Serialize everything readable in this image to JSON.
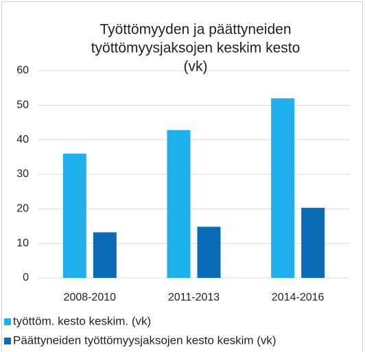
{
  "chart_data": {
    "type": "bar",
    "title": [
      "Työttömyyden ja päättyneiden",
      "työttömyysjaksojen keskim kesto",
      "(vk)"
    ],
    "categories": [
      "2008-2010",
      "2011-2013",
      "2014-2016"
    ],
    "series": [
      {
        "name": "työttöm. kesto keskim. (vk)",
        "color": "#1eb0ec",
        "values": [
          36,
          42.8,
          52
        ]
      },
      {
        "name": "Päättyneiden työttömyysjaksojen kesto keskim (vk)",
        "color": "#0a6cb6",
        "values": [
          13.2,
          14.8,
          20.3
        ]
      }
    ],
    "ylim": [
      0,
      60
    ],
    "yticks": [
      0,
      10,
      20,
      30,
      40,
      50,
      60
    ],
    "grid": true,
    "legend": "bottom"
  }
}
